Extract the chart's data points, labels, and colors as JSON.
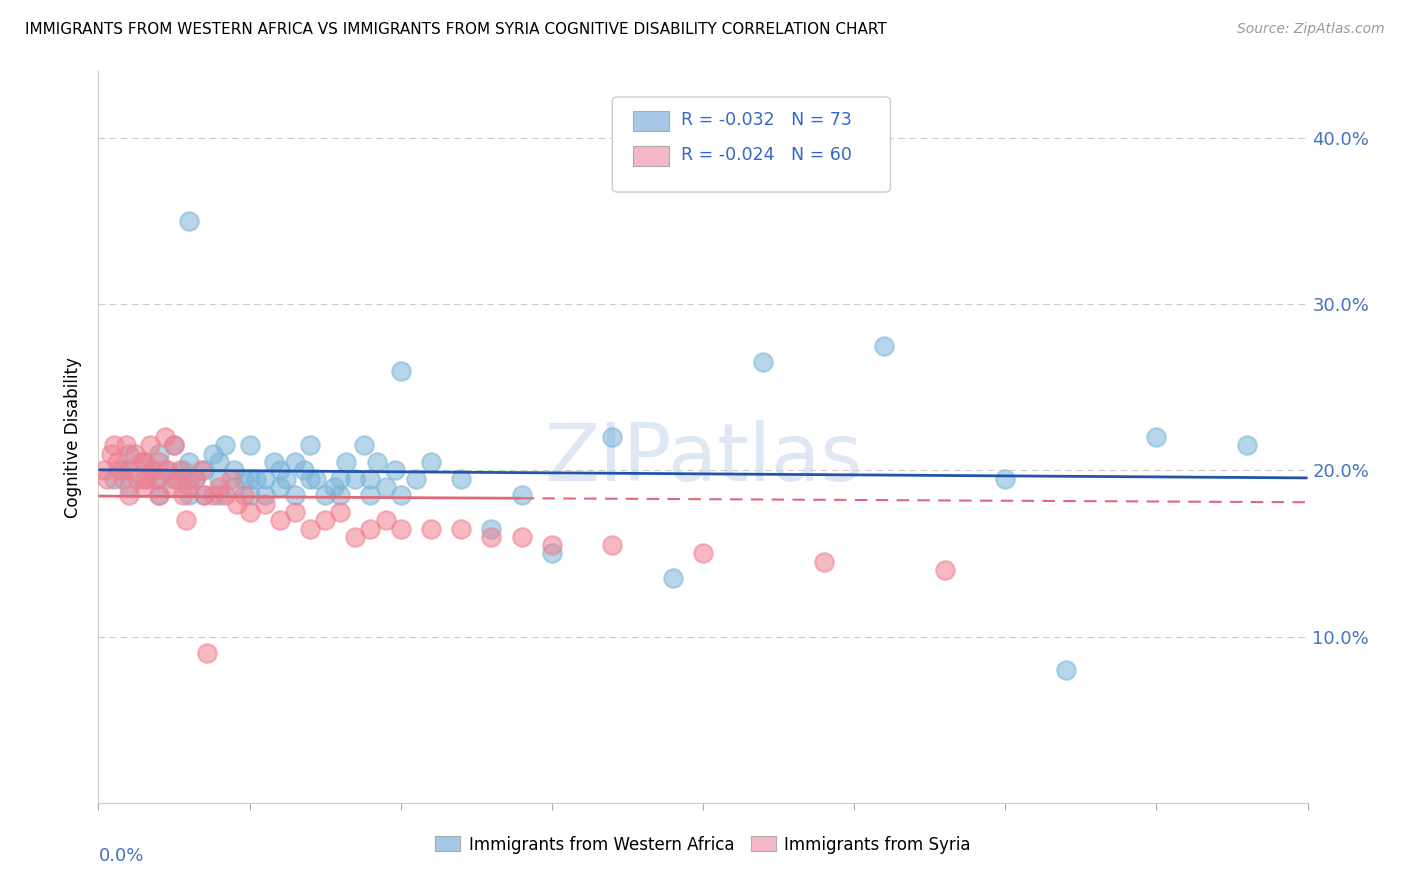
{
  "title": "IMMIGRANTS FROM WESTERN AFRICA VS IMMIGRANTS FROM SYRIA COGNITIVE DISABILITY CORRELATION CHART",
  "source": "Source: ZipAtlas.com",
  "ylabel": "Cognitive Disability",
  "ytick_vals": [
    0.1,
    0.2,
    0.3,
    0.4
  ],
  "xlim": [
    0.0,
    0.4
  ],
  "ylim": [
    0.0,
    0.44
  ],
  "legend1_label": "R = -0.032   N = 73",
  "legend2_label": "R = -0.024   N = 60",
  "legend1_color": "#a8c8e8",
  "legend2_color": "#f4b8c8",
  "scatter1_color": "#7ab4d8",
  "scatter2_color": "#f08090",
  "line1_color": "#2255aa",
  "line2_color": "#e06878",
  "watermark": "ZIPatlas",
  "R1": -0.032,
  "R2": -0.024,
  "blue_points_x": [
    0.005,
    0.008,
    0.01,
    0.01,
    0.015,
    0.015,
    0.018,
    0.02,
    0.02,
    0.02,
    0.022,
    0.025,
    0.025,
    0.028,
    0.03,
    0.03,
    0.03,
    0.03,
    0.032,
    0.035,
    0.035,
    0.038,
    0.04,
    0.04,
    0.04,
    0.042,
    0.045,
    0.045,
    0.048,
    0.05,
    0.05,
    0.05,
    0.052,
    0.055,
    0.055,
    0.058,
    0.06,
    0.06,
    0.062,
    0.065,
    0.065,
    0.068,
    0.07,
    0.07,
    0.072,
    0.075,
    0.078,
    0.08,
    0.08,
    0.082,
    0.085,
    0.088,
    0.09,
    0.09,
    0.092,
    0.095,
    0.098,
    0.1,
    0.1,
    0.105,
    0.11,
    0.12,
    0.13,
    0.14,
    0.15,
    0.17,
    0.19,
    0.22,
    0.26,
    0.3,
    0.32,
    0.35,
    0.38
  ],
  "blue_points_y": [
    0.195,
    0.2,
    0.19,
    0.21,
    0.195,
    0.205,
    0.2,
    0.185,
    0.195,
    0.21,
    0.2,
    0.195,
    0.215,
    0.2,
    0.185,
    0.195,
    0.205,
    0.35,
    0.195,
    0.185,
    0.2,
    0.21,
    0.185,
    0.195,
    0.205,
    0.215,
    0.19,
    0.2,
    0.195,
    0.185,
    0.195,
    0.215,
    0.195,
    0.185,
    0.195,
    0.205,
    0.19,
    0.2,
    0.195,
    0.185,
    0.205,
    0.2,
    0.195,
    0.215,
    0.195,
    0.185,
    0.19,
    0.185,
    0.195,
    0.205,
    0.195,
    0.215,
    0.185,
    0.195,
    0.205,
    0.19,
    0.2,
    0.185,
    0.26,
    0.195,
    0.205,
    0.195,
    0.165,
    0.185,
    0.15,
    0.22,
    0.135,
    0.265,
    0.275,
    0.195,
    0.08,
    0.22,
    0.215
  ],
  "pink_points_x": [
    0.002,
    0.003,
    0.004,
    0.005,
    0.006,
    0.007,
    0.008,
    0.009,
    0.01,
    0.01,
    0.012,
    0.013,
    0.014,
    0.015,
    0.015,
    0.016,
    0.017,
    0.018,
    0.019,
    0.02,
    0.02,
    0.022,
    0.023,
    0.024,
    0.025,
    0.026,
    0.027,
    0.028,
    0.029,
    0.03,
    0.032,
    0.034,
    0.035,
    0.036,
    0.038,
    0.04,
    0.042,
    0.044,
    0.046,
    0.048,
    0.05,
    0.055,
    0.06,
    0.065,
    0.07,
    0.075,
    0.08,
    0.085,
    0.09,
    0.095,
    0.1,
    0.11,
    0.12,
    0.13,
    0.14,
    0.15,
    0.17,
    0.2,
    0.24,
    0.28
  ],
  "pink_points_y": [
    0.2,
    0.195,
    0.21,
    0.215,
    0.205,
    0.2,
    0.195,
    0.215,
    0.185,
    0.2,
    0.21,
    0.195,
    0.205,
    0.19,
    0.205,
    0.195,
    0.215,
    0.2,
    0.195,
    0.185,
    0.205,
    0.22,
    0.2,
    0.19,
    0.215,
    0.195,
    0.2,
    0.185,
    0.17,
    0.19,
    0.195,
    0.2,
    0.185,
    0.09,
    0.185,
    0.19,
    0.185,
    0.195,
    0.18,
    0.185,
    0.175,
    0.18,
    0.17,
    0.175,
    0.165,
    0.17,
    0.175,
    0.16,
    0.165,
    0.17,
    0.165,
    0.165,
    0.165,
    0.16,
    0.16,
    0.155,
    0.155,
    0.15,
    0.145,
    0.14
  ]
}
